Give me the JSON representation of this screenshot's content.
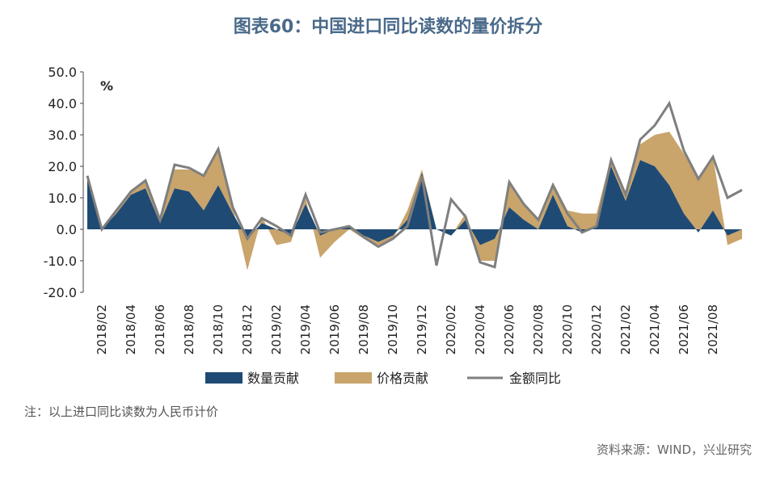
{
  "chart_data": {
    "type": "area",
    "stacked": true,
    "title": "图表60：中国进口同比读数的量价拆分",
    "y_unit": "%",
    "note": "注：以上进口同比读数为人民币计价",
    "source": "资料来源：WIND，兴业研究",
    "categories": [
      null,
      "2018/02",
      null,
      "2018/04",
      null,
      "2018/06",
      null,
      "2018/08",
      null,
      "2018/10",
      null,
      "2018/12",
      null,
      "2019/02",
      null,
      "2019/04",
      null,
      "2019/06",
      null,
      "2019/08",
      null,
      "2019/10",
      null,
      "2019/12",
      null,
      "2020/02",
      null,
      "2020/04",
      null,
      "2020/06",
      null,
      "2020/08",
      null,
      "2020/10",
      null,
      "2020/12",
      null,
      "2021/02",
      null,
      "2021/04",
      null,
      "2021/06",
      null,
      "2021/08",
      null,
      null
    ],
    "series": [
      {
        "name": "数量贡献",
        "color": "#1f4a73",
        "values": [
          17,
          0,
          5,
          11,
          13,
          2,
          13,
          12,
          6,
          14,
          5,
          -3,
          2,
          0,
          -2,
          8,
          -2,
          0,
          1,
          -2,
          -4,
          -2,
          3,
          18,
          0,
          -2,
          3,
          -5,
          -3,
          7,
          3,
          0,
          11,
          1,
          -1,
          1,
          20,
          9,
          22,
          20,
          14,
          5,
          -1,
          6,
          -2,
          0
        ]
      },
      {
        "name": "价格贡献",
        "color": "#c9a46b",
        "values": [
          0,
          0,
          1,
          1.5,
          2,
          1.5,
          6,
          7,
          11,
          11,
          2,
          -10,
          2,
          -5,
          -2,
          2,
          -7,
          -4,
          -1,
          -1,
          -1,
          -1,
          3,
          1,
          0,
          0,
          2,
          -5,
          -7,
          8,
          5,
          3,
          4,
          5,
          6,
          4,
          3,
          2,
          5,
          10,
          17,
          19,
          17,
          17,
          -3,
          -3
        ]
      },
      {
        "name": "金额同比",
        "color": "#7f7f7f",
        "type": "line",
        "values": [
          17,
          0,
          6,
          12,
          15.5,
          3,
          20.5,
          19.5,
          17,
          25.5,
          7,
          -3,
          3.5,
          1,
          -2,
          11,
          -1,
          0,
          1,
          -2.5,
          -5.5,
          -3,
          1,
          17,
          -11.5,
          9.5,
          4,
          -10.5,
          -12,
          15,
          8,
          3,
          14,
          5,
          -1,
          1,
          22,
          11,
          28.5,
          33,
          40,
          25,
          16,
          23,
          10,
          12.5
        ]
      }
    ],
    "ylim": [
      -20,
      50
    ],
    "yticks": [
      {
        "value": -20,
        "label": "-20.0"
      },
      {
        "value": -10,
        "label": "-10.0"
      },
      {
        "value": 0,
        "label": "0.0"
      },
      {
        "value": 10,
        "label": "10.0"
      },
      {
        "value": 20,
        "label": "20.0"
      },
      {
        "value": 30,
        "label": "30.0"
      },
      {
        "value": 40,
        "label": "40.0"
      },
      {
        "value": 50,
        "label": "50.0"
      }
    ]
  }
}
